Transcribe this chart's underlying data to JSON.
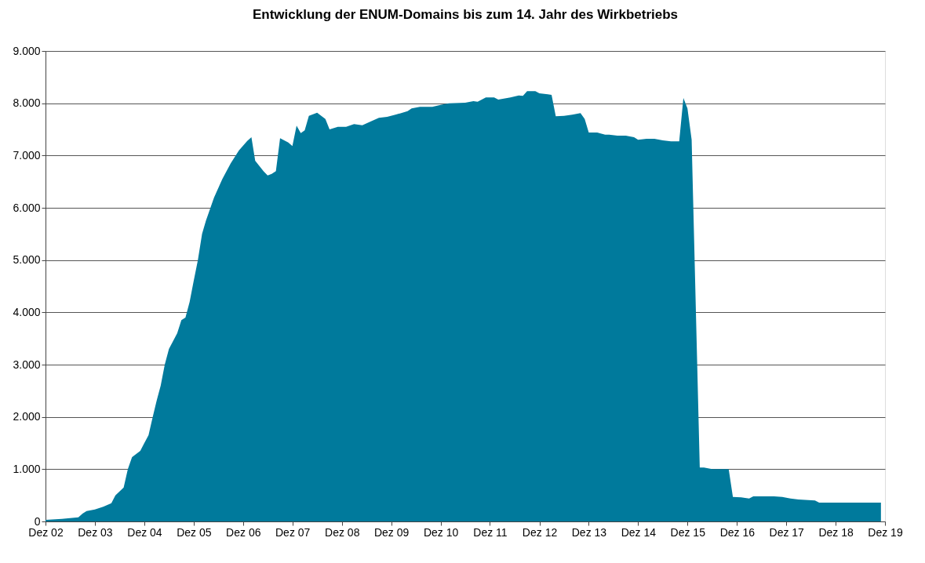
{
  "chart_data": {
    "type": "area",
    "title": "Entwicklung der ENUM-Domains bis zum 14. Jahr des Wirkbetriebs",
    "x": [
      "2002-12",
      "2003-04",
      "2003-08",
      "2003-09",
      "2003-10",
      "2003-12",
      "2004-02",
      "2004-04",
      "2004-05",
      "2004-07",
      "2004-08",
      "2004-09",
      "2004-11",
      "2004-12",
      "2005-01",
      "2005-02",
      "2005-03",
      "2005-04",
      "2005-05",
      "2005-06",
      "2005-08",
      "2005-09",
      "2005-10",
      "2005-11",
      "2005-12",
      "2006-01",
      "2006-02",
      "2006-03",
      "2006-05",
      "2006-07",
      "2006-09",
      "2006-11",
      "2007-01",
      "2007-02",
      "2007-03",
      "2007-05",
      "2007-06",
      "2007-07",
      "2007-08",
      "2007-09",
      "2007-11",
      "2007-12",
      "2008-01",
      "2008-02",
      "2008-03",
      "2008-04",
      "2008-06",
      "2008-08",
      "2008-09",
      "2008-11",
      "2009-01",
      "2009-03",
      "2009-05",
      "2009-07",
      "2009-09",
      "2009-11",
      "2010-01",
      "2010-04",
      "2010-05",
      "2010-07",
      "2010-10",
      "2010-12",
      "2011-02",
      "2011-06",
      "2011-08",
      "2011-09",
      "2011-11",
      "2012-01",
      "2012-02",
      "2012-05",
      "2012-07",
      "2012-08",
      "2012-09",
      "2012-11",
      "2012-12",
      "2013-02",
      "2013-03",
      "2013-04",
      "2013-06",
      "2013-08",
      "2013-10",
      "2013-11",
      "2013-12",
      "2014-02",
      "2014-04",
      "2014-05",
      "2014-07",
      "2014-09",
      "2014-11",
      "2014-12",
      "2015-02",
      "2015-04",
      "2015-06",
      "2015-08",
      "2015-10",
      "2015-11",
      "2015-12",
      "2016-01",
      "2016-03",
      "2016-04",
      "2016-06",
      "2016-10",
      "2016-11",
      "2017-01",
      "2017-03",
      "2017-04",
      "2017-09",
      "2017-11",
      "2018-01",
      "2018-03",
      "2018-07",
      "2018-08",
      "2019-11"
    ],
    "series": [
      {
        "color": "#007a9c",
        "values": [
          30,
          50,
          80,
          150,
          200,
          230,
          280,
          350,
          500,
          650,
          1000,
          1230,
          1350,
          1500,
          1650,
          2000,
          2300,
          2600,
          3000,
          3300,
          3600,
          3850,
          3900,
          4200,
          4600,
          5000,
          5500,
          5750,
          6200,
          6550,
          6850,
          7100,
          7280,
          7350,
          6900,
          6700,
          6620,
          6650,
          6700,
          7330,
          7250,
          7180,
          7570,
          7430,
          7480,
          7760,
          7820,
          7700,
          7500,
          7550,
          7550,
          7600,
          7580,
          7650,
          7720,
          7740,
          7780,
          7850,
          7900,
          7930,
          7930,
          7970,
          8000,
          8010,
          8040,
          8030,
          8110,
          8110,
          8070,
          8110,
          8150,
          8140,
          8230,
          8230,
          8190,
          8170,
          8160,
          7750,
          7760,
          7780,
          7810,
          7700,
          7440,
          7440,
          7400,
          7400,
          7380,
          7380,
          7350,
          7300,
          7320,
          7320,
          7290,
          7270,
          7270,
          8100,
          7900,
          7300,
          1030,
          1030,
          1000,
          1000,
          470,
          460,
          440,
          480,
          480,
          470,
          440,
          420,
          400,
          360,
          360
        ]
      }
    ],
    "xlim": [
      "2002-12",
      "2019-12"
    ],
    "xticks": [
      {
        "value": "2002-12",
        "label": "Dez 02"
      },
      {
        "value": "2003-12",
        "label": "Dez 03"
      },
      {
        "value": "2004-12",
        "label": "Dez 04"
      },
      {
        "value": "2005-12",
        "label": "Dez 05"
      },
      {
        "value": "2006-12",
        "label": "Dez 06"
      },
      {
        "value": "2007-12",
        "label": "Dez 07"
      },
      {
        "value": "2008-12",
        "label": "Dez 08"
      },
      {
        "value": "2009-12",
        "label": "Dez 09"
      },
      {
        "value": "2010-12",
        "label": "Dez 10"
      },
      {
        "value": "2011-12",
        "label": "Dez 11"
      },
      {
        "value": "2012-12",
        "label": "Dez 12"
      },
      {
        "value": "2013-12",
        "label": "Dez 13"
      },
      {
        "value": "2014-12",
        "label": "Dez 14"
      },
      {
        "value": "2015-12",
        "label": "Dez 15"
      },
      {
        "value": "2016-12",
        "label": "Dez 16"
      },
      {
        "value": "2017-12",
        "label": "Dez 17"
      },
      {
        "value": "2018-12",
        "label": "Dez 18"
      },
      {
        "value": "2019-12",
        "label": "Dez 19"
      }
    ],
    "ylim": [
      0,
      9000
    ],
    "yticks": [
      0,
      {
        "value": 1000,
        "label": "1.000"
      },
      {
        "value": 2000,
        "label": "2.000"
      },
      {
        "value": 3000,
        "label": "3.000"
      },
      {
        "value": 4000,
        "label": "4.000"
      },
      {
        "value": 5000,
        "label": "5.000"
      },
      {
        "value": 6000,
        "label": "6.000"
      },
      {
        "value": 7000,
        "label": "7.000"
      },
      {
        "value": 8000,
        "label": "8.000"
      },
      {
        "value": 9000,
        "label": "9.000"
      }
    ],
    "grid": "y"
  }
}
